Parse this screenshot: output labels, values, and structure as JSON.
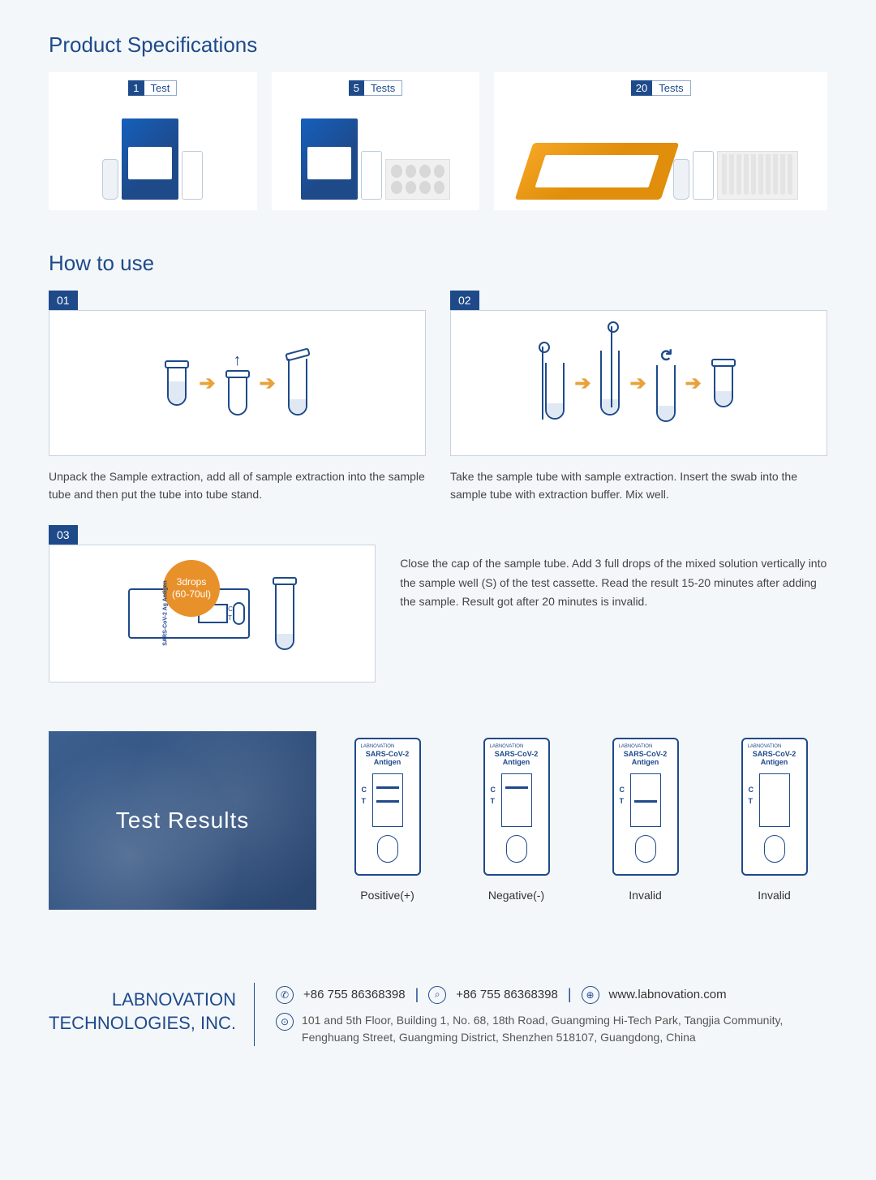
{
  "colors": {
    "primary": "#1e4a8a",
    "accent": "#e8912a",
    "background": "#f4f7fa",
    "text": "#333333",
    "muted": "#555555",
    "border": "#c7d3e2"
  },
  "specs": {
    "title": "Product Specifications",
    "items": [
      {
        "count": "1",
        "label": "Test"
      },
      {
        "count": "5",
        "label": "Tests"
      },
      {
        "count": "20",
        "label": "Tests"
      }
    ]
  },
  "howto": {
    "title": "How to use",
    "steps": [
      {
        "num": "01",
        "text": "Unpack the Sample extraction, add all of sample extraction into the sample tube and then put the tube into tube stand."
      },
      {
        "num": "02",
        "text": "Take the sample tube with sample extraction. Insert the swab into the sample tube with extraction buffer. Mix well."
      },
      {
        "num": "03",
        "text": "Close the cap of the sample tube. Add 3 full drops of the mixed solution vertically into the sample well (S) of the test cassette. Read the result 15-20 minutes after adding the sample. Result got after 20 minutes is invalid."
      }
    ],
    "drops_badge": {
      "line1": "3drops",
      "line2": "(60-70ul)"
    },
    "cassette_label": "SARS-CoV-2 Ag Antigen"
  },
  "results": {
    "title": "Test Results",
    "brand": "LABNOVATION",
    "cassette_title": "SARS-CoV-2\nAntigen",
    "ct_labels": "C\nT",
    "items": [
      {
        "label": "Positive(+)",
        "show_c": true,
        "show_t": true
      },
      {
        "label": "Negative(-)",
        "show_c": true,
        "show_t": false
      },
      {
        "label": "Invalid",
        "show_c": false,
        "show_t": true
      },
      {
        "label": "Invalid",
        "show_c": false,
        "show_t": false
      }
    ]
  },
  "footer": {
    "company_line1": "LABNOVATION",
    "company_line2": "TECHNOLOGIES, INC.",
    "phone": "+86 755 86368398",
    "fax": "+86 755 86368398",
    "website": "www.labnovation.com",
    "address": "101 and 5th Floor, Building 1, No. 68, 18th Road, Guangming Hi-Tech Park, Tangjia Community, Fenghuang Street, Guangming District, Shenzhen 518107, Guangdong, China"
  }
}
